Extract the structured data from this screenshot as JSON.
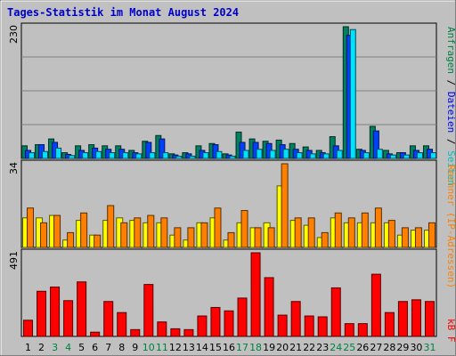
{
  "chart_data": {
    "type": "bar",
    "title": "Tages-Statistik im Monat August 2024",
    "categories": [
      "1",
      "2",
      "3",
      "4",
      "5",
      "6",
      "7",
      "8",
      "9",
      "10",
      "11",
      "12",
      "13",
      "14",
      "15",
      "16",
      "17",
      "18",
      "19",
      "20",
      "21",
      "22",
      "23",
      "24",
      "25",
      "26",
      "27",
      "28",
      "29",
      "30",
      "31"
    ],
    "weekend_days": [
      "3",
      "4",
      "10",
      "11",
      "17",
      "18",
      "24",
      "25",
      "31"
    ],
    "panels": [
      {
        "id": "requests",
        "ymax_label": "230",
        "ymax": 230,
        "right_label": [
          {
            "text": "Anfragen",
            "color": "#008040"
          },
          {
            "text": " / ",
            "color": "#000000"
          },
          {
            "text": "Dateien",
            "color": "#0000ff"
          },
          {
            "text": " / ",
            "color": "#000000"
          },
          {
            "text": "Seiten",
            "color": "#00c0c0"
          }
        ],
        "series": [
          {
            "name": "Anfragen",
            "color": "#008060",
            "values": [
              22,
              24,
              34,
              10,
              22,
              24,
              22,
              22,
              14,
              30,
              40,
              8,
              10,
              22,
              26,
              8,
              46,
              34,
              30,
              32,
              26,
              20,
              14,
              38,
              230,
              16,
              56,
              14,
              10,
              22,
              22
            ]
          },
          {
            "name": "Dateien",
            "color": "#0040ff",
            "values": [
              14,
              24,
              28,
              7,
              14,
              18,
              16,
              16,
              10,
              28,
              34,
              6,
              8,
              14,
              24,
              6,
              28,
              28,
              26,
              24,
              16,
              14,
              10,
              22,
              215,
              14,
              48,
              8,
              10,
              14,
              16
            ]
          },
          {
            "name": "Seiten",
            "color": "#00e0ff",
            "values": [
              10,
              12,
              18,
              5,
              10,
              12,
              10,
              10,
              8,
              10,
              10,
              4,
              4,
              10,
              12,
              4,
              14,
              16,
              14,
              16,
              10,
              8,
              8,
              14,
              225,
              10,
              16,
              6,
              6,
              10,
              10
            ]
          }
        ]
      },
      {
        "id": "hosts",
        "ymax_label": "34",
        "ymax": 34,
        "right_label": [
          {
            "text": "Rechner (IP-Adressen)",
            "color": "#ff8000"
          }
        ],
        "series": [
          {
            "name": "Rechner",
            "color": "#ffff00",
            "values": [
              12,
              12,
              13,
              3,
              11,
              5,
              11,
              12,
              11,
              10,
              10,
              5,
              3,
              10,
              12,
              3,
              10,
              8,
              10,
              25,
              11,
              9,
              4,
              12,
              10,
              10,
              10,
              10,
              5,
              7,
              7
            ]
          },
          {
            "name": "Rechner (IP-Adressen)",
            "color": "#ff8000",
            "values": [
              16,
              10,
              13,
              6,
              14,
              5,
              17,
              10,
              12,
              13,
              12,
              8,
              8,
              10,
              16,
              6,
              15,
              8,
              8,
              34,
              12,
              12,
              6,
              14,
              12,
              14,
              16,
              11,
              8,
              8,
              10
            ]
          }
        ]
      },
      {
        "id": "kbytes",
        "ymax_label": "491",
        "ymax": 491,
        "right_label": [
          {
            "text": "kB F",
            "color": "#ff0000"
          }
        ],
        "series": [
          {
            "name": "kB F",
            "color": "#ff0000",
            "values": [
              95,
              265,
              290,
              210,
              320,
              25,
              205,
              140,
              40,
              305,
              85,
              45,
              40,
              120,
              170,
              150,
              225,
              491,
              345,
              125,
              205,
              120,
              115,
              285,
              75,
              75,
              365,
              140,
              205,
              215,
              205
            ]
          }
        ]
      }
    ]
  }
}
